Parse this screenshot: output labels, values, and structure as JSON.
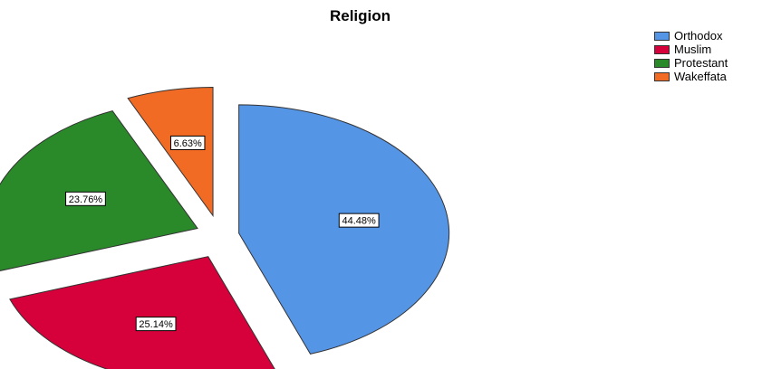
{
  "chart_data": {
    "type": "pie",
    "title": "Religion",
    "categories": [
      "Orthodox",
      "Muslim",
      "Protestant",
      "Wakeffata"
    ],
    "values": [
      44.48,
      25.14,
      23.76,
      6.63
    ],
    "labels": [
      "44.48%",
      "25.14%",
      "23.76%",
      "6.63%"
    ],
    "colors": [
      "#5595e6",
      "#d6003a",
      "#2a8a2a",
      "#f26b24"
    ],
    "exploded": true,
    "legend_position": "top-right"
  }
}
